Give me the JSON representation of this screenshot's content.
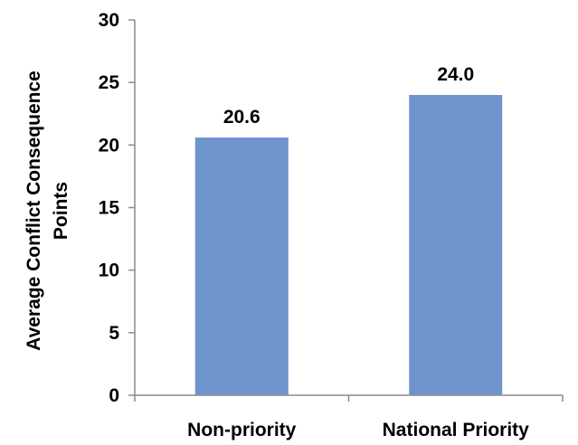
{
  "chart_data": {
    "type": "bar",
    "categories": [
      "Non-priority",
      "National Priority"
    ],
    "values": [
      20.6,
      24.0
    ],
    "value_labels": [
      "20.6",
      "24.0"
    ],
    "title": "",
    "xlabel": "",
    "ylabel_lines": [
      "Average Conflict Consequence",
      "Points"
    ],
    "ylim": [
      0,
      30
    ],
    "yticks": [
      0,
      5,
      10,
      15,
      20,
      25,
      30
    ],
    "grid": false,
    "legend": "none",
    "bar_color": "#6f93cc",
    "axis_color": "#8c8c8c"
  }
}
